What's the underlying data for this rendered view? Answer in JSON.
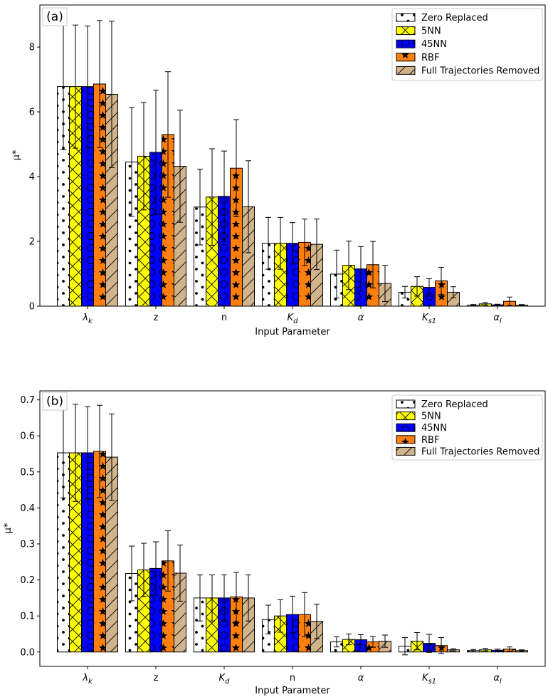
{
  "colors": {
    "zero": "#ffffff",
    "nn5": "#ffff00",
    "nn45": "#0000ff",
    "rbf": "#ff7f0e",
    "full": "#d2b48c",
    "edge": "#000000"
  },
  "chart_data": [
    {
      "type": "bar",
      "panel_label": "(a)",
      "xlabel": "Input Parameter",
      "ylabel": "μ*",
      "ylim": [
        0,
        9.3
      ],
      "yticks": [
        0,
        2,
        4,
        6,
        8
      ],
      "ytick_labels": [
        "0",
        "2",
        "4",
        "6",
        "8"
      ],
      "legend_position": "top-right",
      "categories": [
        "λ",
        "z",
        "n",
        "K",
        "α",
        "K",
        "α"
      ],
      "category_subscripts": [
        "k",
        "",
        "",
        "d",
        "",
        "s1",
        "l"
      ],
      "series": [
        {
          "name": "Zero Replaced",
          "key": "zero",
          "values": [
            6.78,
            4.45,
            3.06,
            1.94,
            0.99,
            0.43,
            0.03
          ],
          "err": [
            1.95,
            1.68,
            1.17,
            0.8,
            0.74,
            0.18,
            0.02
          ]
        },
        {
          "name": "5NN",
          "key": "nn5",
          "values": [
            6.78,
            4.63,
            3.37,
            1.94,
            1.26,
            0.61,
            0.07
          ],
          "err": [
            1.9,
            1.66,
            1.49,
            0.8,
            0.75,
            0.3,
            0.04
          ]
        },
        {
          "name": "45NN",
          "key": "nn45",
          "values": [
            6.78,
            4.75,
            3.39,
            1.94,
            1.15,
            0.58,
            0.04
          ],
          "err": [
            1.87,
            1.92,
            1.4,
            0.64,
            0.69,
            0.27,
            0.02
          ]
        },
        {
          "name": "RBF",
          "key": "rbf",
          "values": [
            6.86,
            5.3,
            4.26,
            1.97,
            1.28,
            0.78,
            0.15
          ],
          "err": [
            1.96,
            1.94,
            1.5,
            0.72,
            0.72,
            0.42,
            0.13
          ]
        },
        {
          "name": "Full Trajectories Removed",
          "key": "full",
          "values": [
            6.54,
            4.32,
            3.07,
            1.91,
            0.7,
            0.43,
            0.03
          ],
          "err": [
            2.26,
            1.73,
            1.42,
            0.78,
            0.56,
            0.17,
            0.02
          ]
        }
      ]
    },
    {
      "type": "bar",
      "panel_label": "(b)",
      "xlabel": "Input Parameter",
      "ylabel": "μ*",
      "ylim": [
        -0.04,
        0.725
      ],
      "yticks": [
        0,
        0.1,
        0.2,
        0.3,
        0.4,
        0.5,
        0.6,
        0.7
      ],
      "ytick_labels": [
        "0.0",
        "0.1",
        "0.2",
        "0.3",
        "0.4",
        "0.5",
        "0.6",
        "0.7"
      ],
      "legend_position": "top-right",
      "categories": [
        "λ",
        "z",
        "K",
        "n",
        "α",
        "K",
        "α"
      ],
      "category_subscripts": [
        "k",
        "",
        "d",
        "",
        "",
        "s1",
        "l"
      ],
      "series": [
        {
          "name": "Zero Replaced",
          "key": "zero",
          "values": [
            0.553,
            0.218,
            0.15,
            0.09,
            0.028,
            0.016,
            0.004
          ],
          "err": [
            0.125,
            0.076,
            0.064,
            0.04,
            0.014,
            0.024,
            0.003
          ]
        },
        {
          "name": "5NN",
          "key": "nn5",
          "values": [
            0.553,
            0.228,
            0.15,
            0.1,
            0.035,
            0.03,
            0.006
          ],
          "err": [
            0.135,
            0.074,
            0.064,
            0.045,
            0.015,
            0.024,
            0.004
          ]
        },
        {
          "name": "45NN",
          "key": "nn45",
          "values": [
            0.553,
            0.232,
            0.15,
            0.104,
            0.034,
            0.024,
            0.005
          ],
          "err": [
            0.128,
            0.074,
            0.064,
            0.051,
            0.014,
            0.025,
            0.003
          ]
        },
        {
          "name": "RBF",
          "key": "rbf",
          "values": [
            0.557,
            0.253,
            0.153,
            0.104,
            0.028,
            0.018,
            0.008
          ],
          "err": [
            0.128,
            0.084,
            0.068,
            0.061,
            0.015,
            0.022,
            0.006
          ]
        },
        {
          "name": "Full Trajectories Removed",
          "key": "full",
          "values": [
            0.541,
            0.219,
            0.15,
            0.085,
            0.03,
            0.006,
            0.004
          ],
          "err": [
            0.12,
            0.078,
            0.064,
            0.048,
            0.017,
            0.003,
            0.002
          ]
        }
      ]
    }
  ]
}
